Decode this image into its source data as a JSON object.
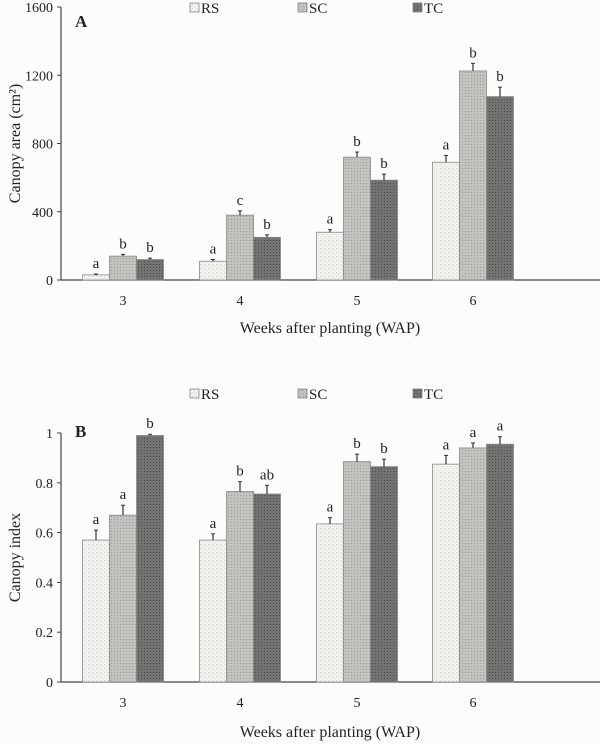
{
  "chart_data": [
    {
      "type": "bar",
      "panel_label": "A",
      "xlabel": "Weeks after planting (WAP)",
      "ylabel": "Canopy area (cm²)",
      "categories": [
        "3",
        "4",
        "5",
        "6"
      ],
      "ylim": [
        0,
        1600
      ],
      "yticks": [
        "0",
        "400",
        "800",
        "1200",
        "1600"
      ],
      "legend_position": "top",
      "series": [
        {
          "name": "RS",
          "color": "#f1efec",
          "values": [
            30,
            110,
            280,
            690
          ],
          "errors": [
            5,
            10,
            15,
            40
          ],
          "letters": [
            "a",
            "a",
            "a",
            "a"
          ]
        },
        {
          "name": "SC",
          "color": "#bdbbb8",
          "values": [
            140,
            380,
            720,
            1225
          ],
          "errors": [
            10,
            25,
            30,
            45
          ],
          "letters": [
            "b",
            "c",
            "b",
            "b"
          ]
        },
        {
          "name": "TC",
          "color": "#6f6d6b",
          "values": [
            120,
            250,
            585,
            1075
          ],
          "errors": [
            8,
            15,
            35,
            55
          ],
          "letters": [
            "b",
            "b",
            "b",
            "b"
          ]
        }
      ]
    },
    {
      "type": "bar",
      "panel_label": "B",
      "xlabel": "Weeks after planting (WAP)",
      "ylabel": "Canopy index",
      "categories": [
        "3",
        "4",
        "5",
        "6"
      ],
      "ylim": [
        0,
        1
      ],
      "yticks": [
        "0",
        "0.2",
        "0.4",
        "0.6",
        "0.8",
        "1"
      ],
      "legend_position": "top",
      "series": [
        {
          "name": "RS",
          "color": "#f1efec",
          "values": [
            0.57,
            0.57,
            0.635,
            0.875
          ],
          "errors": [
            0.04,
            0.025,
            0.025,
            0.035
          ],
          "letters": [
            "a",
            "a",
            "a",
            "a"
          ]
        },
        {
          "name": "SC",
          "color": "#bdbbb8",
          "values": [
            0.67,
            0.765,
            0.885,
            0.94
          ],
          "errors": [
            0.04,
            0.04,
            0.03,
            0.02
          ],
          "letters": [
            "a",
            "b",
            "b",
            "a"
          ]
        },
        {
          "name": "TC",
          "color": "#6f6d6b",
          "values": [
            0.99,
            0.755,
            0.865,
            0.955
          ],
          "errors": [
            0.005,
            0.035,
            0.03,
            0.03
          ],
          "letters": [
            "b",
            "ab",
            "b",
            "a"
          ]
        }
      ]
    }
  ]
}
